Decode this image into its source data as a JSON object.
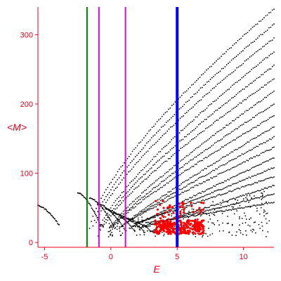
{
  "chart_data": {
    "type": "scatter",
    "title": "",
    "xlabel": "E",
    "ylabel": "<M>",
    "xlim": [
      -5.5,
      12.3
    ],
    "ylim": [
      -7,
      340
    ],
    "x_ticks": [
      -5,
      0,
      5,
      10
    ],
    "x_tick_labels": [
      "-5",
      "0",
      "5",
      "10"
    ],
    "y_ticks": [
      0,
      100,
      200,
      300
    ],
    "y_tick_labels": [
      "0",
      "100",
      "200",
      "300"
    ],
    "grid": false,
    "legend": "none",
    "vertical_lines": [
      {
        "x": -1.8,
        "color": "#007a00",
        "width": 2
      },
      {
        "x": -0.9,
        "color": "#e000e0",
        "width": 2
      },
      {
        "x": 1.1,
        "color": "#e000e0",
        "width": 2
      },
      {
        "x": 5.0,
        "color": "#0000ff",
        "width": 4
      }
    ],
    "black_curves_apex": [
      [
        -5.5,
        53
      ],
      [
        -2.5,
        72
      ],
      [
        -1.6,
        64
      ],
      [
        -1.0,
        56
      ],
      [
        -0.4,
        48
      ],
      [
        0.2,
        42
      ],
      [
        0.8,
        36
      ]
    ],
    "black_curves_ends": [
      [
        12.3,
        337
      ],
      [
        12.3,
        315
      ],
      [
        12.3,
        295
      ],
      [
        12.3,
        275
      ],
      [
        12.3,
        255
      ],
      [
        12.3,
        236
      ],
      [
        12.3,
        218
      ],
      [
        12.3,
        200
      ],
      [
        12.3,
        183
      ],
      [
        12.3,
        167
      ],
      [
        12.3,
        152
      ],
      [
        12.3,
        137
      ],
      [
        12.3,
        122
      ],
      [
        12.3,
        108
      ],
      [
        12.3,
        95
      ],
      [
        12.3,
        82
      ],
      [
        12.3,
        70
      ],
      [
        12.3,
        58
      ]
    ],
    "red_cluster": {
      "x_range": [
        3.3,
        7.0
      ],
      "y_range": [
        12,
        60
      ],
      "color": "#ff0000"
    }
  },
  "colors": {
    "axis": "#e8001c",
    "points": "#000000",
    "highlight": "#ff0000"
  }
}
